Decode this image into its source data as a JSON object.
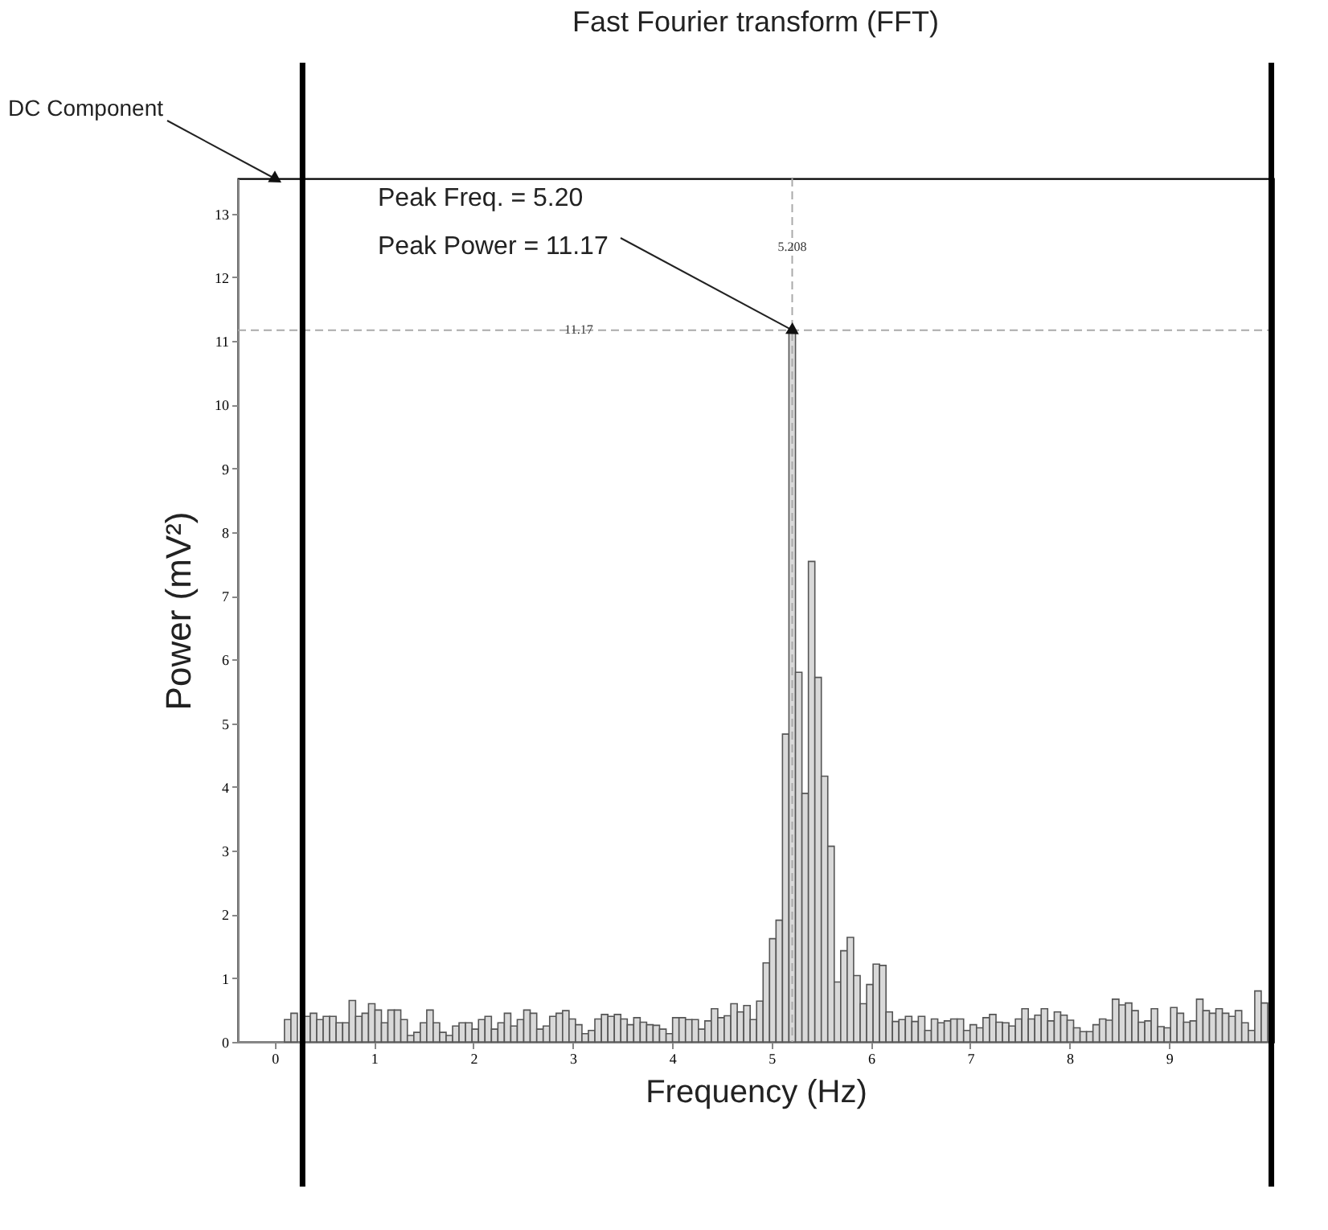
{
  "chart_data": {
    "type": "histogram",
    "title": "Fast Fourier transform (FFT)",
    "xlabel": "Frequency (Hz)",
    "ylabel": "Power (mV²)",
    "bins": [
      -0.033,
      0.033,
      0.098,
      0.163,
      0.228,
      0.293,
      0.358,
      0.423,
      0.488,
      0.553,
      0.618,
      0.684,
      0.749,
      0.814,
      0.879,
      0.944,
      1.009,
      1.074,
      1.139,
      1.204,
      1.269,
      1.335,
      1.4,
      1.465,
      1.53,
      1.595,
      1.66,
      1.725,
      1.79,
      1.855,
      1.92,
      1.986,
      2.051,
      2.116,
      2.181,
      2.246,
      2.311,
      2.376,
      2.441,
      2.506,
      2.571,
      2.637,
      2.702,
      2.767,
      2.832,
      2.897,
      2.962,
      3.027,
      3.092,
      3.157,
      3.222,
      3.288,
      3.353,
      3.418,
      3.483,
      3.548,
      3.613,
      3.678,
      3.743,
      3.808,
      3.873,
      3.939,
      4.004,
      4.069,
      4.134,
      4.199,
      4.264,
      4.329,
      4.394,
      4.459,
      4.524,
      4.59,
      4.655,
      4.72,
      4.785,
      4.85,
      4.915,
      4.98,
      5.045,
      5.11,
      5.175,
      5.241,
      5.306,
      5.371,
      5.436,
      5.501,
      5.566,
      5.631,
      5.696,
      5.761,
      5.826,
      5.892,
      5.957,
      6.022,
      6.087,
      6.152,
      6.217,
      6.282,
      6.347,
      6.412,
      6.477,
      6.543,
      6.608,
      6.673,
      6.738,
      6.803,
      6.868,
      6.933,
      6.998,
      7.063,
      7.128,
      7.194,
      7.259,
      7.324,
      7.389,
      7.454,
      7.519,
      7.584,
      7.649,
      7.714,
      7.779,
      7.845,
      7.91,
      7.975,
      8.04,
      8.105,
      8.17,
      8.235,
      8.3,
      8.365,
      8.43,
      8.496,
      8.561,
      8.626,
      8.691,
      8.756,
      8.821,
      8.886,
      8.951,
      9.016,
      9.081,
      9.147,
      9.212,
      9.277,
      9.342,
      9.407,
      9.472,
      9.537,
      9.602,
      9.667,
      9.732,
      9.798,
      9.863,
      9.928,
      9.993
    ],
    "values": [
      null,
      null,
      0.35,
      0.45,
      null,
      0.4,
      0.45,
      0.35,
      0.4,
      0.4,
      0.3,
      0.3,
      0.65,
      0.4,
      0.45,
      0.6,
      0.5,
      0.3,
      0.5,
      0.5,
      0.35,
      0.1,
      0.15,
      0.3,
      0.5,
      0.3,
      0.15,
      0.1,
      0.25,
      0.3,
      0.3,
      0.2,
      0.35,
      0.4,
      0.2,
      0.3,
      0.45,
      0.25,
      0.35,
      0.5,
      0.45,
      0.2,
      0.25,
      0.4,
      0.45,
      0.49,
      0.36,
      0.27,
      0.13,
      0.18,
      0.36,
      0.43,
      0.4,
      0.43,
      0.36,
      0.27,
      0.38,
      0.31,
      0.27,
      0.26,
      0.2,
      0.13,
      0.38,
      0.38,
      0.35,
      0.35,
      0.2,
      0.33,
      0.52,
      0.38,
      0.41,
      0.6,
      0.47,
      0.57,
      0.35,
      0.64,
      1.24,
      1.62,
      1.91,
      4.83,
      11.17,
      5.8,
      3.9,
      7.54,
      5.72,
      4.17,
      3.07,
      0.94,
      1.43,
      1.64,
      1.04,
      0.6,
      0.9,
      1.22,
      1.2,
      0.47,
      0.32,
      0.35,
      0.4,
      0.32,
      0.4,
      0.18,
      0.36,
      0.3,
      0.33,
      0.36,
      0.36,
      0.18,
      0.27,
      0.22,
      0.38,
      0.43,
      0.31,
      0.3,
      0.25,
      0.36,
      0.52,
      0.36,
      0.42,
      0.52,
      0.33,
      0.47,
      0.42,
      0.34,
      0.22,
      0.16,
      0.16,
      0.27,
      0.36,
      0.34,
      0.67,
      0.58,
      0.61,
      0.49,
      0.31,
      0.33,
      0.52,
      0.24,
      0.22,
      0.54,
      0.45,
      0.31,
      0.33,
      0.67,
      0.49,
      0.45,
      0.52,
      0.45,
      0.4,
      0.49,
      0.3,
      0.18,
      0.8,
      0.61
    ],
    "color": "#d9d9d9",
    "xlim": [
      -0.37,
      10.05
    ],
    "xticks": [
      0,
      1,
      2,
      3,
      4,
      5,
      6,
      7,
      8,
      9
    ],
    "ylim": [
      0,
      13.55
    ],
    "yticks": [
      0,
      1,
      2,
      3,
      4,
      5,
      6,
      7,
      8,
      9,
      10,
      11,
      12,
      13
    ],
    "grid": false,
    "ref_lines": [
      {
        "axis": "x",
        "value": 5.208,
        "label": "5.208",
        "color": "#aaaaaa",
        "line_style": "dashed"
      },
      {
        "axis": "y",
        "value": 11.17,
        "label": "11.17",
        "color": "#aaaaaa",
        "line_style": "dashed"
      },
      {
        "axis": "x",
        "value": 0.28,
        "color": "#000000",
        "line_style": "solid"
      },
      {
        "axis": "x",
        "value": 10.03,
        "color": "#000000",
        "line_style": "solid"
      }
    ],
    "annotations": [
      {
        "text": "DC Component",
        "x": 0,
        "y": 13.55
      },
      "Peak Freq. = 5.20",
      {
        "text": "Peak Power = 11.17",
        "x": 5.208,
        "y": 11.17
      }
    ]
  }
}
